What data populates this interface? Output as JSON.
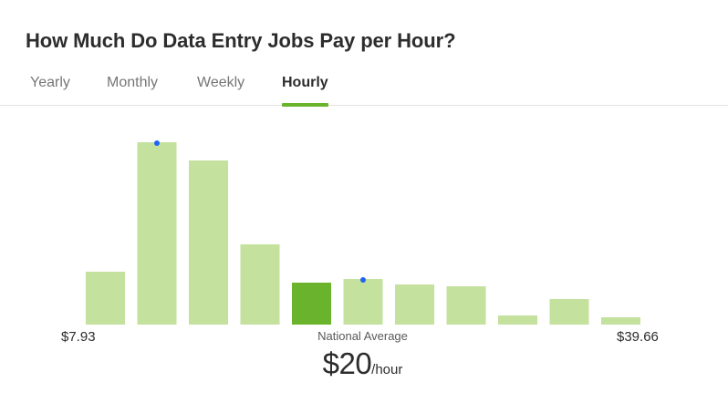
{
  "page": {
    "title": "How Much Do Data Entry Jobs Pay per Hour?"
  },
  "tabs": [
    {
      "label": "Yearly",
      "active": false
    },
    {
      "label": "Monthly",
      "active": false
    },
    {
      "label": "Weekly",
      "active": false
    },
    {
      "label": "Hourly",
      "active": true
    }
  ],
  "chart_data": {
    "type": "bar",
    "title": "",
    "xlabel": "",
    "ylabel": "",
    "range_min_label": "$7.93",
    "range_max_label": "$39.66",
    "values": [
      29,
      100,
      90,
      44,
      23,
      25,
      22,
      21,
      5,
      14,
      4
    ],
    "highlight_index": 4,
    "marker_indices": [
      1,
      5
    ],
    "ylim": [
      0,
      100
    ],
    "bar_color": "#c4e19d",
    "highlight_color": "#6ab42d",
    "marker_color": "#2164f3"
  },
  "summary": {
    "label": "National Average",
    "amount": "$20",
    "unit": "/hour"
  },
  "colors": {
    "accent": "#6ab42d",
    "text": "#2d2d2d",
    "muted": "#767676",
    "divider": "#e4e2e0"
  }
}
